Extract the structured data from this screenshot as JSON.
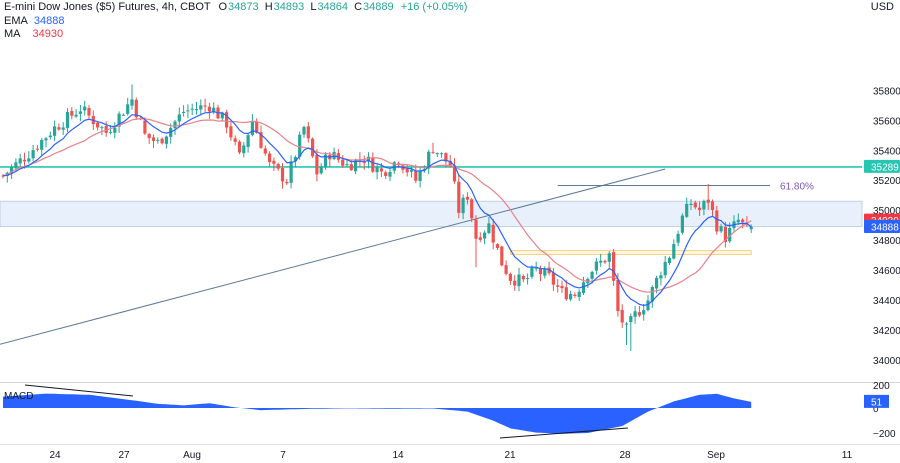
{
  "header": {
    "symbol": "E-mini Dow Jones ($5) Futures, 4h, CBOT",
    "o_label": "O",
    "o": "34873",
    "h_label": "H",
    "h": "34893",
    "l_label": "L",
    "l": "34864",
    "c_label": "C",
    "c": "34889",
    "change": "+16 (+0.05%)",
    "ema_label": "EMA",
    "ema_value": "34888",
    "ma_label": "MA",
    "ma_value": "34930"
  },
  "currency": "USD",
  "colors": {
    "up": "#26a69a",
    "down": "#ef5350",
    "ema": "#2962ff",
    "ma": "#e8828a",
    "level": "#26c6b0",
    "fib": "#7e57c2",
    "trend": "#5d7a9a",
    "macd": "#2962ff",
    "price_badge": "#26a69a",
    "ema_badge": "#2962ff",
    "ma_badge": "#f23645"
  },
  "chart_data": [
    {
      "type": "candlestick",
      "title": "E-mini Dow Jones ($5) Futures, 4h, CBOT",
      "ylim": [
        33900,
        35950
      ],
      "y_ticks": [
        34000,
        34200,
        34400,
        34600,
        34800,
        35000,
        35200,
        35400,
        35600,
        35800
      ],
      "x_tick_labels": [
        "24",
        "27",
        "Aug",
        "7",
        "14",
        "21",
        "28",
        "Sep",
        "11"
      ],
      "anchors": [
        [
          0,
          35230
        ],
        [
          6,
          35380
        ],
        [
          12,
          35550
        ],
        [
          18,
          35680
        ],
        [
          24,
          35520
        ],
        [
          30,
          35740
        ],
        [
          33,
          35500
        ],
        [
          36,
          35450
        ],
        [
          42,
          35660
        ],
        [
          48,
          35700
        ],
        [
          52,
          35580
        ],
        [
          55,
          35350
        ],
        [
          58,
          35600
        ],
        [
          62,
          35300
        ],
        [
          66,
          35200
        ],
        [
          70,
          35550
        ],
        [
          73,
          35250
        ],
        [
          76,
          35380
        ],
        [
          80,
          35300
        ],
        [
          84,
          35350
        ],
        [
          88,
          35250
        ],
        [
          92,
          35340
        ],
        [
          96,
          35200
        ],
        [
          100,
          35420
        ],
        [
          104,
          35300
        ],
        [
          106,
          35000
        ],
        [
          108,
          35100
        ],
        [
          110,
          34820
        ],
        [
          113,
          34900
        ],
        [
          116,
          34650
        ],
        [
          118,
          34550
        ],
        [
          121,
          34520
        ],
        [
          124,
          34600
        ],
        [
          127,
          34550
        ],
        [
          130,
          34450
        ],
        [
          133,
          34440
        ],
        [
          136,
          34580
        ],
        [
          139,
          34650
        ],
        [
          141,
          34700
        ],
        [
          143,
          34320
        ],
        [
          145,
          34200
        ],
        [
          147,
          34300
        ],
        [
          150,
          34400
        ],
        [
          153,
          34600
        ],
        [
          155,
          34700
        ],
        [
          158,
          34950
        ],
        [
          160,
          35050
        ],
        [
          162,
          35000
        ],
        [
          164,
          35070
        ],
        [
          166,
          34900
        ],
        [
          168,
          34820
        ],
        [
          171,
          34930
        ],
        [
          173,
          34873
        ],
        [
          174,
          34889
        ]
      ],
      "macd_anchors": [
        [
          0,
          95
        ],
        [
          10,
          120
        ],
        [
          20,
          110
        ],
        [
          30,
          65
        ],
        [
          36,
          35
        ],
        [
          42,
          22
        ],
        [
          48,
          40
        ],
        [
          54,
          5
        ],
        [
          60,
          -18
        ],
        [
          70,
          -8
        ],
        [
          80,
          -3
        ],
        [
          90,
          -6
        ],
        [
          100,
          -4
        ],
        [
          108,
          -30
        ],
        [
          114,
          -105
        ],
        [
          118,
          -170
        ],
        [
          124,
          -205
        ],
        [
          130,
          -215
        ],
        [
          136,
          -208
        ],
        [
          144,
          -150
        ],
        [
          150,
          -30
        ],
        [
          156,
          55
        ],
        [
          162,
          110
        ],
        [
          166,
          118
        ],
        [
          170,
          80
        ],
        [
          174,
          51
        ]
      ],
      "ema": "34888",
      "ma": "34930",
      "last_close": "34889",
      "resistance_level": {
        "value": 35289,
        "label": "35289"
      },
      "fib_level": {
        "value": 35165,
        "label": "61.80%"
      },
      "supply_zone": [
        34890,
        35060
      ],
      "demand_zone": [
        34705,
        34730
      ],
      "trendline": {
        "from": [
          -4,
          34080
        ],
        "to": [
          154,
          35275
        ]
      },
      "macd": {
        "label": "MACD",
        "value": "51",
        "ticks": [
          "200",
          "0",
          "−200"
        ],
        "ylim": [
          -260,
          260
        ]
      }
    }
  ]
}
